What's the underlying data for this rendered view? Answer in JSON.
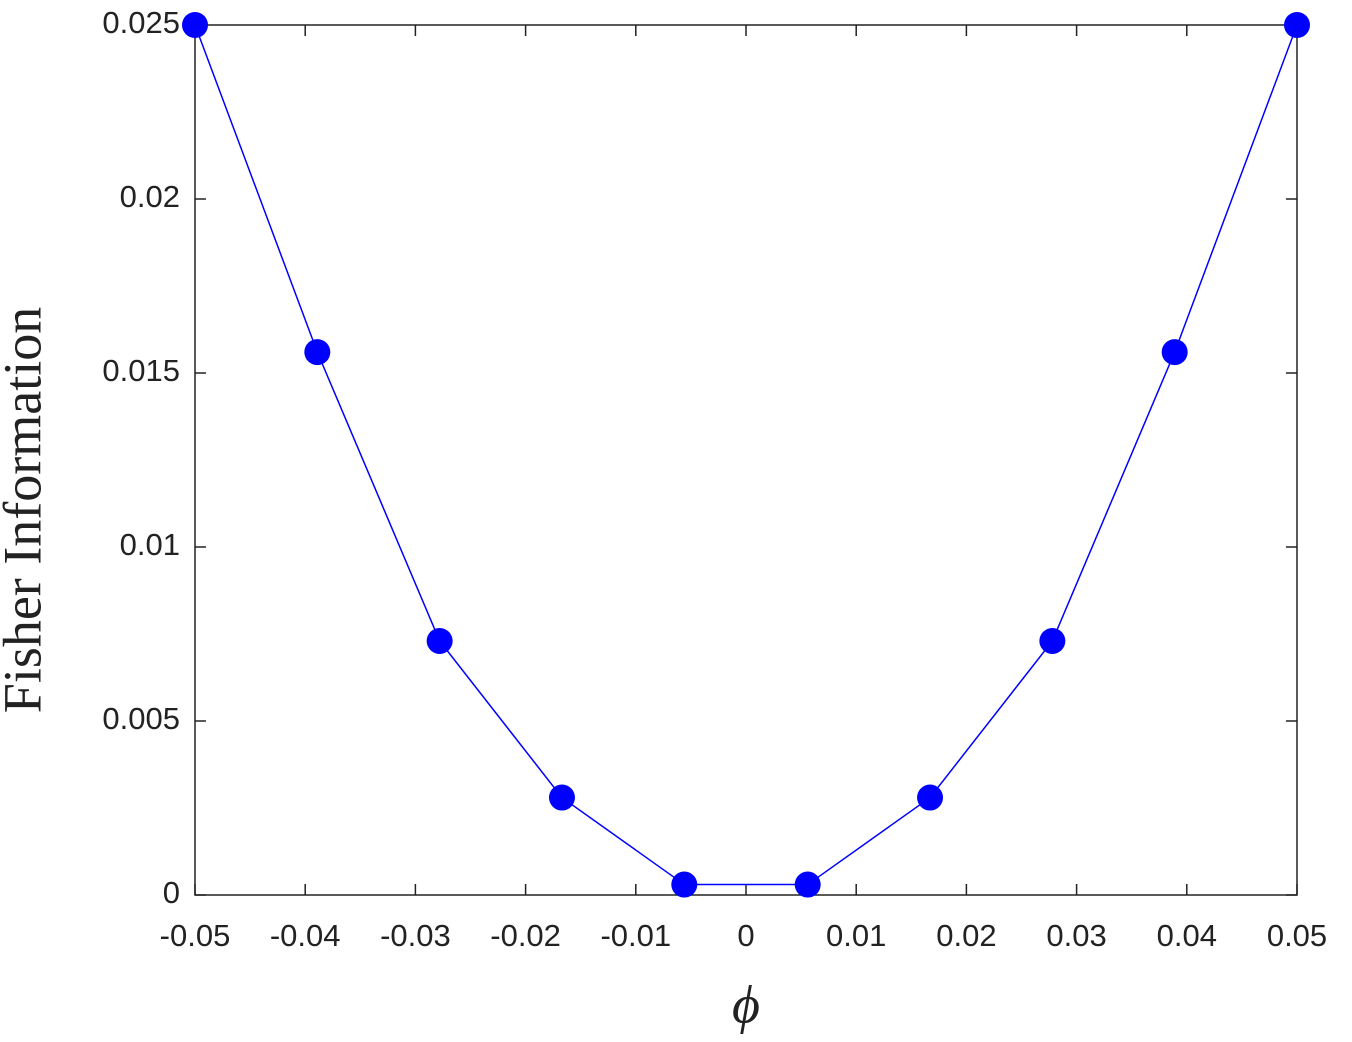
{
  "chart_data": {
    "type": "line",
    "xlabel": "ϕ",
    "ylabel": "Fisher Information",
    "x": [
      -0.05,
      -0.0389,
      -0.0278,
      -0.0167,
      -0.0056,
      0.0056,
      0.0167,
      0.0278,
      0.0389,
      0.05
    ],
    "series": [
      {
        "color": "#0000ff",
        "values": [
          0.025,
          0.0156,
          0.0073,
          0.0028,
          0.0003,
          0.0003,
          0.0028,
          0.0073,
          0.0156,
          0.025
        ]
      }
    ],
    "xlim": [
      -0.05,
      0.05
    ],
    "xticks": [
      -0.05,
      -0.04,
      -0.03,
      -0.02,
      -0.01,
      0,
      0.01,
      0.02,
      0.03,
      0.04,
      0.05
    ],
    "ylim": [
      0,
      0.025
    ],
    "yticks": [
      0,
      0.005,
      0.01,
      0.015,
      0.02,
      0.025
    ],
    "grid": false,
    "markers": true
  }
}
